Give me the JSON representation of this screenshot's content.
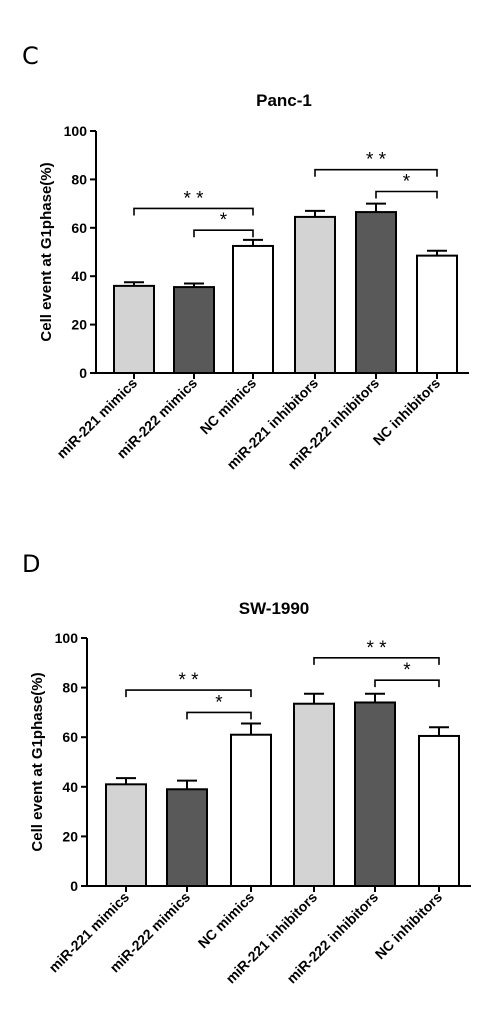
{
  "panels": [
    {
      "letter": "C",
      "chart_data": {
        "type": "bar",
        "title": "Panc-1",
        "xlabel": "",
        "ylabel": "Cell event at G1phase(%)",
        "categories": [
          "miR-221 mimics",
          "miR-222 mimics",
          "NC mimics",
          "miR-221 inhibitors",
          "miR-222 inhibitors",
          "NC inhibitors"
        ],
        "values": [
          36,
          35.5,
          52.5,
          64.5,
          66.5,
          48.5
        ],
        "errors": [
          1.5,
          1.5,
          2.5,
          2.5,
          3.5,
          2
        ],
        "bar_colors": [
          "#d3d3d3",
          "#595959",
          "#ffffff",
          "#d3d3d3",
          "#595959",
          "#ffffff"
        ],
        "ylim": [
          0,
          100
        ],
        "yticks": [
          "0",
          "20",
          "40",
          "60",
          "80",
          "100"
        ],
        "significance": [
          {
            "from": 0,
            "to": 2,
            "y": 68,
            "label": "* *"
          },
          {
            "from": 1,
            "to": 2,
            "y": 59,
            "label": "*"
          },
          {
            "from": 3,
            "to": 5,
            "y": 84,
            "label": "* *"
          },
          {
            "from": 4,
            "to": 5,
            "y": 75,
            "label": "*"
          }
        ]
      }
    },
    {
      "letter": "D",
      "chart_data": {
        "type": "bar",
        "title": "SW-1990",
        "xlabel": "",
        "ylabel": "Cell event at G1phase(%)",
        "categories": [
          "miR-221 mimics",
          "miR-222 mimics",
          "NC mimics",
          "miR-221 inhibitors",
          "miR-222 inhibitors",
          "NC inhibitors"
        ],
        "values": [
          41,
          39,
          61,
          73.5,
          74,
          60.5
        ],
        "errors": [
          2.5,
          3.5,
          4.5,
          4,
          3.5,
          3.5
        ],
        "bar_colors": [
          "#d3d3d3",
          "#595959",
          "#ffffff",
          "#d3d3d3",
          "#595959",
          "#ffffff"
        ],
        "ylim": [
          0,
          100
        ],
        "yticks": [
          "0",
          "20",
          "40",
          "60",
          "80",
          "100"
        ],
        "significance": [
          {
            "from": 0,
            "to": 2,
            "y": 79,
            "label": "* *"
          },
          {
            "from": 1,
            "to": 2,
            "y": 70,
            "label": "*"
          },
          {
            "from": 3,
            "to": 5,
            "y": 92,
            "label": "* *"
          },
          {
            "from": 4,
            "to": 5,
            "y": 83,
            "label": "*"
          }
        ]
      }
    }
  ]
}
